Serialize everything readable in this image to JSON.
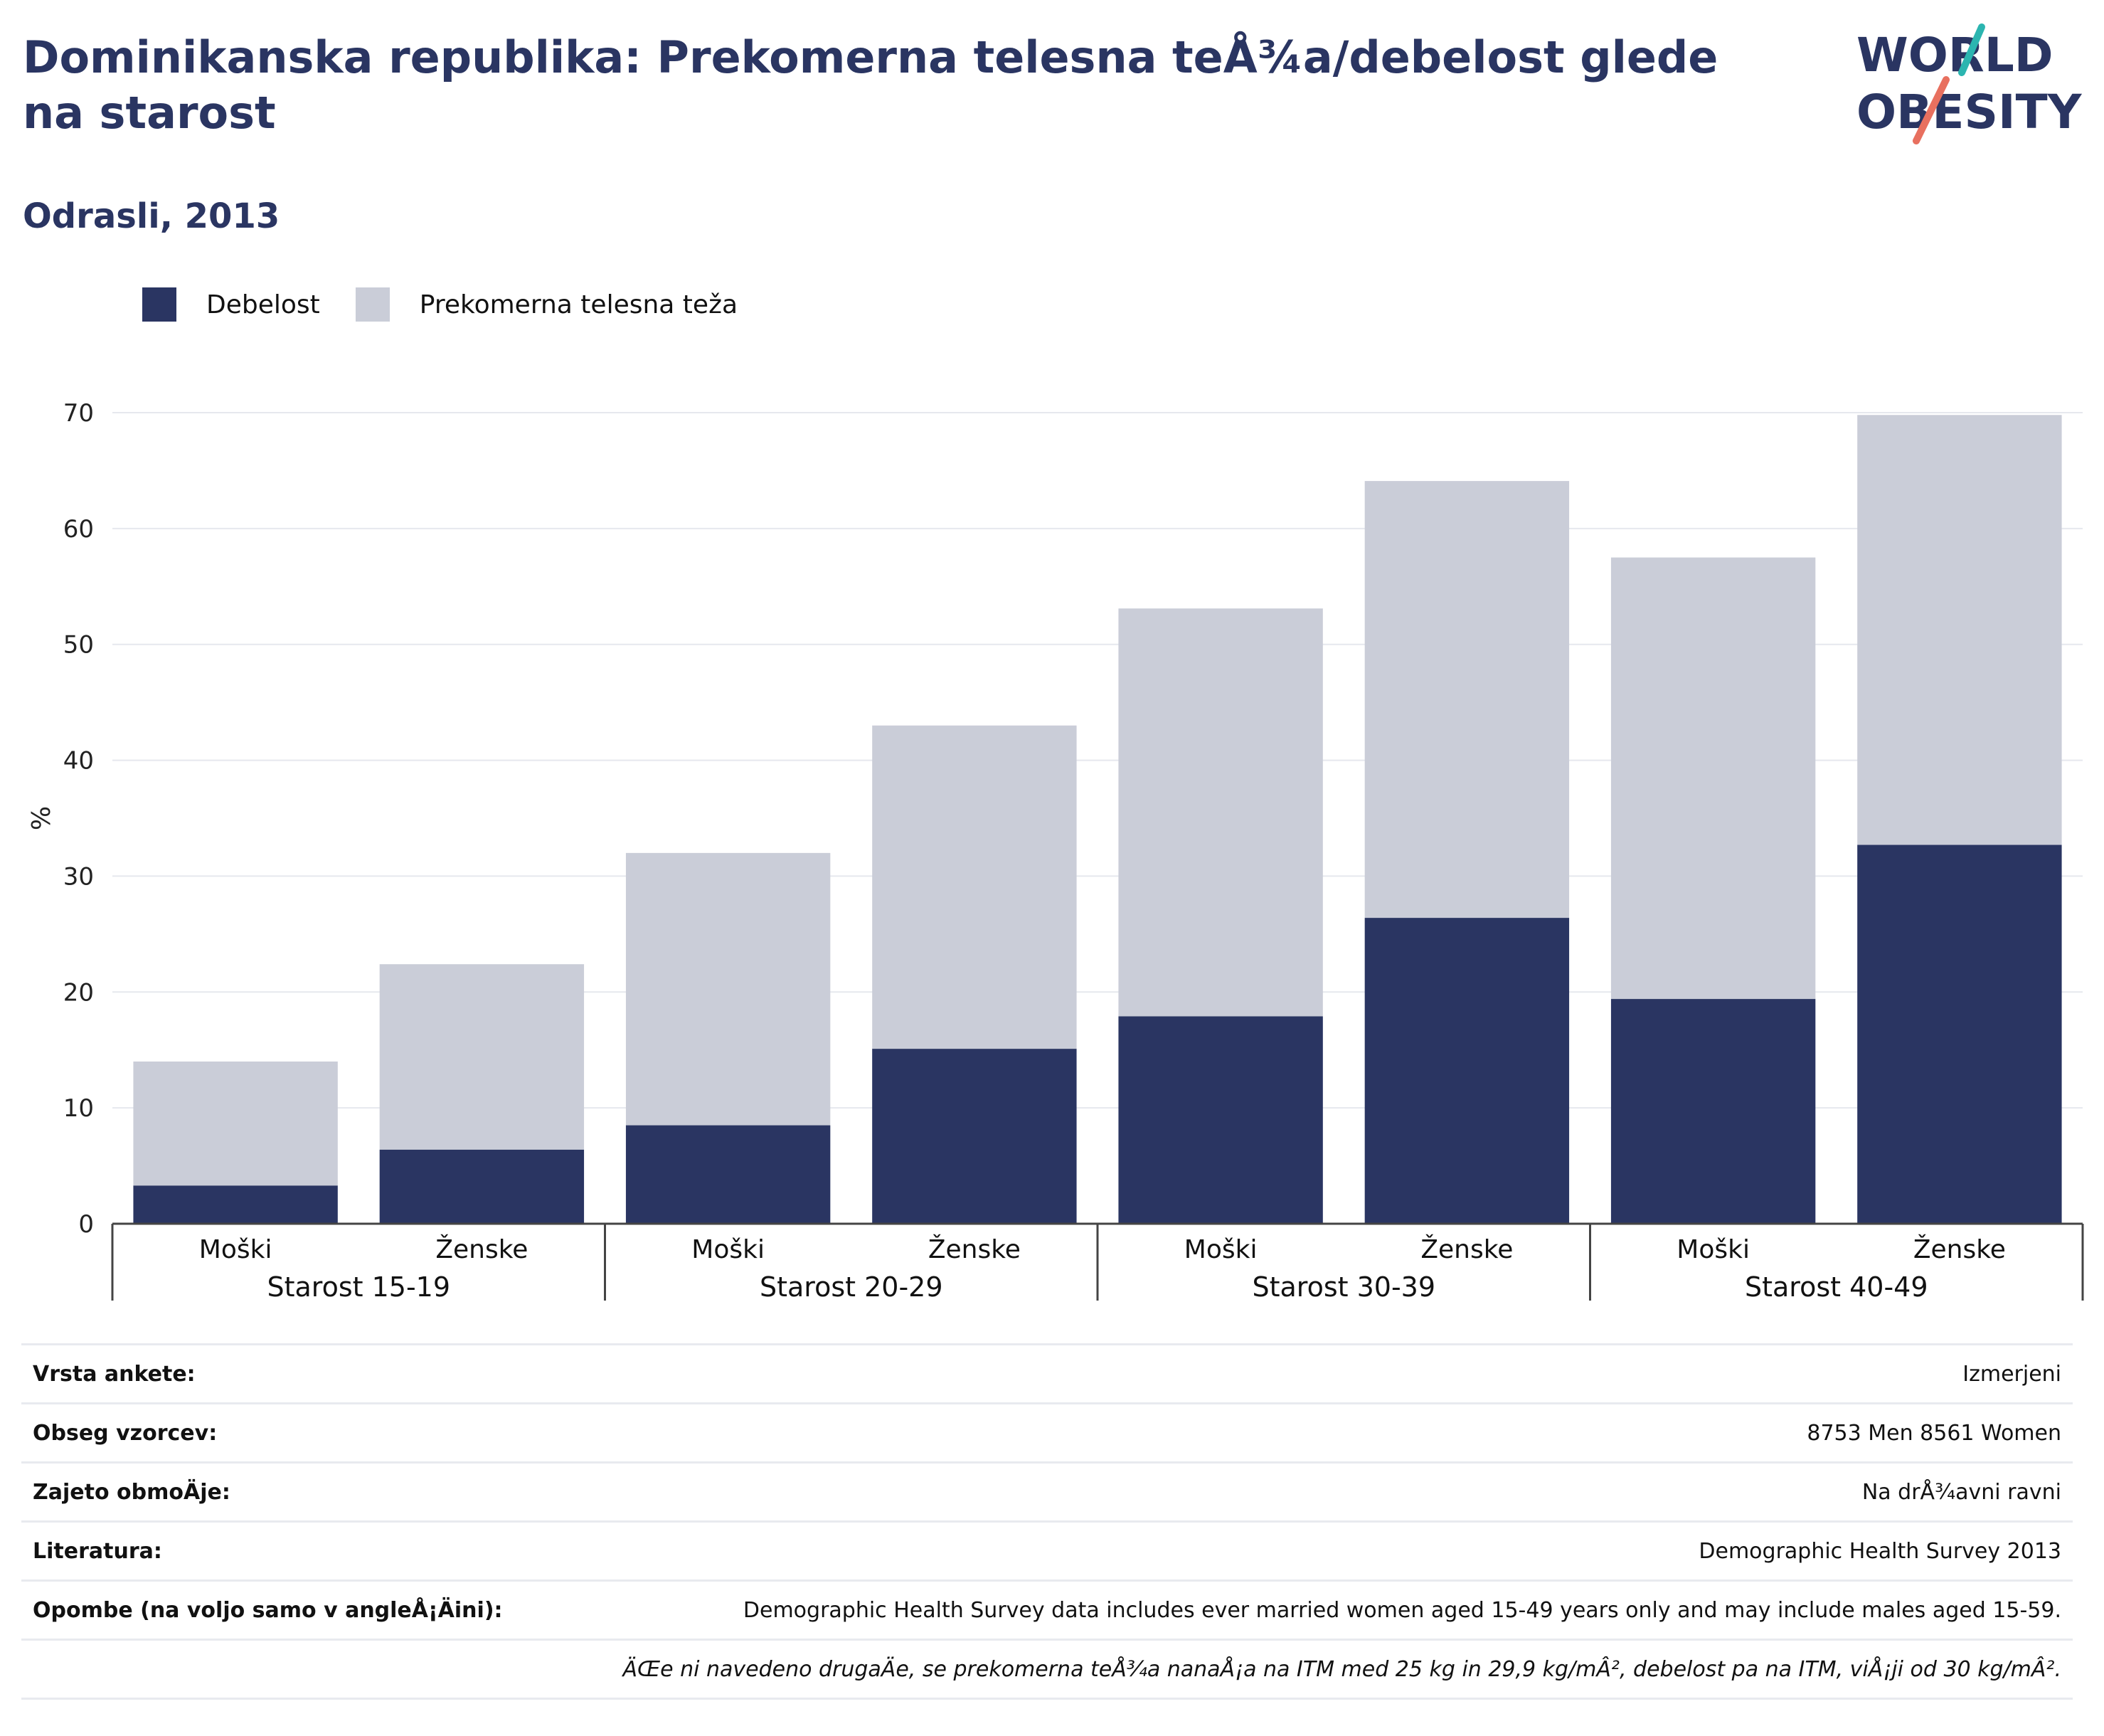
{
  "header": {
    "title": "Dominikanska republika: Prekomerna telesna teÅ¾a/debelost glede na starost",
    "subtitle": "Odrasli, 2013"
  },
  "logo": {
    "line1": "WORLD",
    "line2": "OBESITY",
    "icon": "world-obesity-logo"
  },
  "colors": {
    "obesity": "#2a3562",
    "overweight": "#cacdd8",
    "grid": "#e6e8ee",
    "axis": "#444444",
    "title": "#2a3562"
  },
  "legend": [
    {
      "label": "Debelost",
      "color": "#2a3562"
    },
    {
      "label": "Prekomerna telesna teža",
      "color": "#cacdd8"
    }
  ],
  "chart_data": {
    "type": "bar",
    "stacked": true,
    "ylabel": "%",
    "ylim": [
      0,
      70
    ],
    "yticks": [
      0,
      10,
      20,
      30,
      40,
      50,
      60,
      70
    ],
    "grid": true,
    "legend_position": "top-left",
    "groups": [
      "Starost 15-19",
      "Starost 20-29",
      "Starost 30-39",
      "Starost 40-49"
    ],
    "categories": [
      "Moški",
      "Ženske",
      "Moški",
      "Ženske",
      "Moški",
      "Ženske",
      "Moški",
      "Ženske"
    ],
    "series": [
      {
        "name": "Debelost",
        "values": [
          3.3,
          6.4,
          8.5,
          15.1,
          17.9,
          26.4,
          19.4,
          32.7
        ]
      },
      {
        "name": "Prekomerna telesna teža",
        "values": [
          10.7,
          16.0,
          23.5,
          27.9,
          35.2,
          37.7,
          38.1,
          37.1
        ]
      }
    ]
  },
  "info": [
    {
      "label": "Vrsta ankete:",
      "value": "Izmerjeni"
    },
    {
      "label": "Obseg vzorcev:",
      "value": "8753 Men 8561 Women"
    },
    {
      "label": "Zajeto obmoÄje:",
      "value": "Na drÅ¾avni ravni"
    },
    {
      "label": "Literatura:",
      "value": "Demographic Health Survey 2013"
    },
    {
      "label": "Opombe (na voljo samo v angleÅ¡Äini):",
      "value": "Demographic Health Survey data includes ever married women aged 15-49 years only and may include males aged 15-59."
    }
  ],
  "footnote": "ÄŒe ni navedeno drugaÄe, se prekomerna teÅ¾a nanaÅ¡a na ITM med 25 kg in 29,9 kg/mÂ², debelost pa na ITM, viÅ¡ji od 30 kg/mÂ²."
}
